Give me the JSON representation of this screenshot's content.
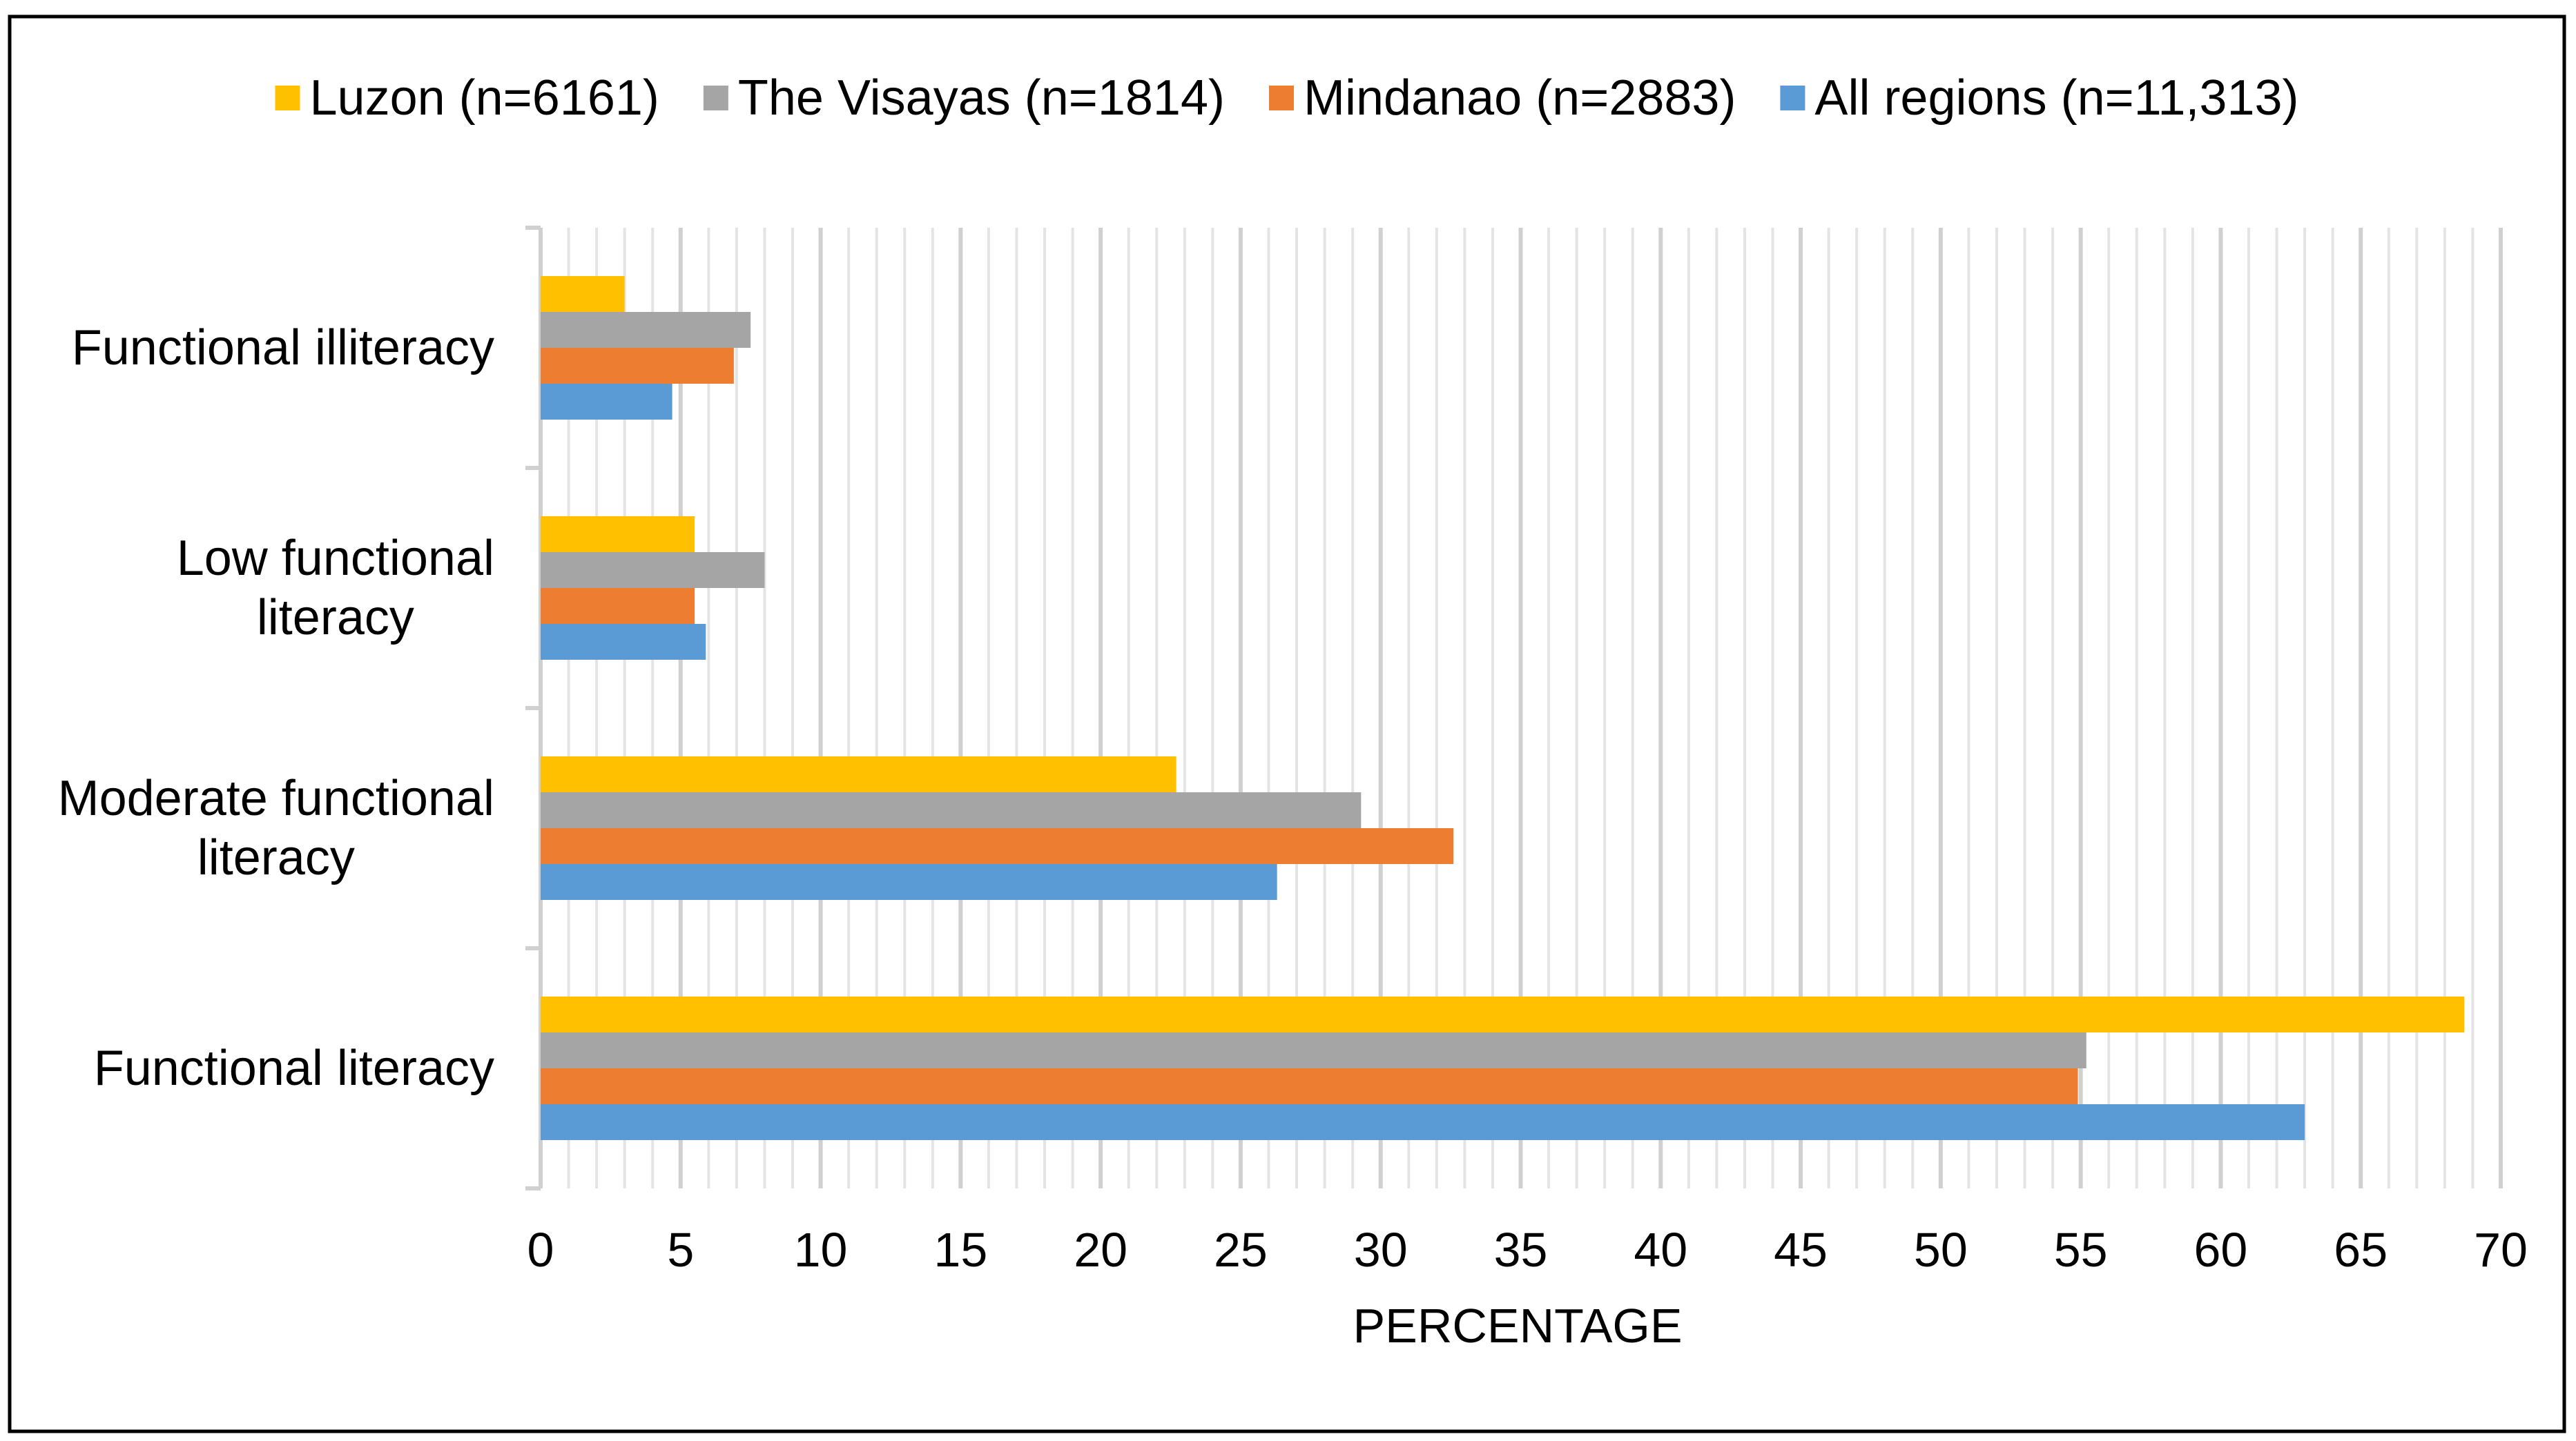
{
  "chart_data": {
    "type": "bar",
    "orientation": "horizontal",
    "categories": [
      "Functional illiteracy",
      "Low functional literacy",
      "Moderate functional literacy",
      "Functional literacy"
    ],
    "category_label_lines": [
      [
        "Functional illiteracy"
      ],
      [
        "Low functional",
        "literacy"
      ],
      [
        "Moderate functional",
        "literacy"
      ],
      [
        "Functional literacy"
      ]
    ],
    "series": [
      {
        "name": "Luzon (n=6161)",
        "color": "#FFC000",
        "values": [
          3.0,
          5.5,
          22.7,
          68.7
        ]
      },
      {
        "name": "The Visayas (n=1814)",
        "color": "#A5A5A5",
        "values": [
          7.5,
          8.0,
          29.3,
          55.2
        ]
      },
      {
        "name": "Mindanao (n=2883)",
        "color": "#ED7D31",
        "values": [
          6.9,
          5.5,
          32.6,
          54.9
        ]
      },
      {
        "name": "All regions (n=11,313)",
        "color": "#5B9BD5",
        "values": [
          4.7,
          5.9,
          26.3,
          63.0
        ]
      }
    ],
    "xlabel": "PERCENTAGE",
    "ylabel": "",
    "xlim": [
      0,
      70
    ],
    "xticks": [
      "0",
      "5",
      "10",
      "15",
      "20",
      "25",
      "30",
      "35",
      "40",
      "45",
      "50",
      "55",
      "60",
      "65",
      "70"
    ],
    "grid": true,
    "legend_position": "top"
  }
}
